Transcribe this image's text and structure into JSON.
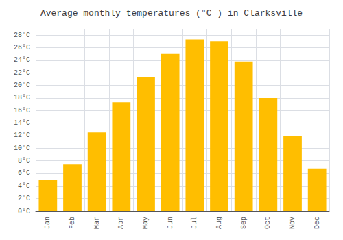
{
  "chart_data": {
    "type": "bar",
    "title": "Average monthly temperatures (°C ) in Clarksville",
    "categories": [
      "Jan",
      "Feb",
      "Mar",
      "Apr",
      "May",
      "Jun",
      "Jul",
      "Aug",
      "Sep",
      "Oct",
      "Nov",
      "Dec"
    ],
    "values": [
      5.0,
      7.5,
      12.5,
      17.3,
      21.3,
      25.0,
      27.3,
      27.0,
      23.8,
      18.0,
      12.0,
      6.8
    ],
    "color": "#FFBE00",
    "ylim": [
      0,
      29
    ],
    "yticks": [
      {
        "value": 0,
        "label": "0°C"
      },
      {
        "value": 2,
        "label": "2°C"
      },
      {
        "value": 4,
        "label": "4°C"
      },
      {
        "value": 6,
        "label": "6°C"
      },
      {
        "value": 8,
        "label": "8°C"
      },
      {
        "value": 10,
        "label": "10°C"
      },
      {
        "value": 12,
        "label": "12°C"
      },
      {
        "value": 14,
        "label": "14°C"
      },
      {
        "value": 16,
        "label": "16°C"
      },
      {
        "value": 18,
        "label": "18°C"
      },
      {
        "value": 20,
        "label": "20°C"
      },
      {
        "value": 22,
        "label": "22°C"
      },
      {
        "value": 24,
        "label": "24°C"
      },
      {
        "value": 26,
        "label": "26°C"
      },
      {
        "value": 28,
        "label": "28°C"
      }
    ],
    "grid": true
  }
}
